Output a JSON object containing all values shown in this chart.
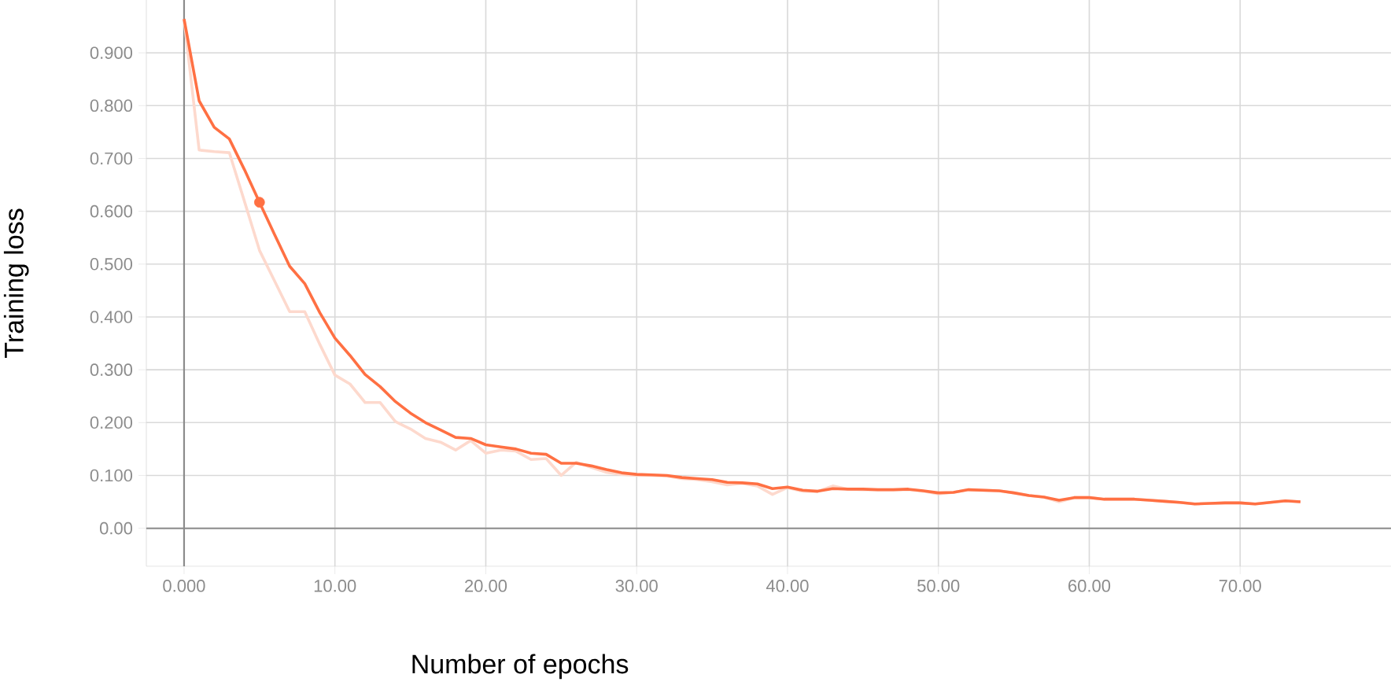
{
  "chart_data": {
    "type": "line",
    "xlabel": "Number of epochs",
    "ylabel": "Training loss",
    "xlim": [
      -2.5,
      80
    ],
    "ylim": [
      -0.072,
      1.0
    ],
    "xticks": [
      {
        "value": 0,
        "label": "0.000"
      },
      {
        "value": 10,
        "label": "10.00"
      },
      {
        "value": 20,
        "label": "20.00"
      },
      {
        "value": 30,
        "label": "30.00"
      },
      {
        "value": 40,
        "label": "40.00"
      },
      {
        "value": 50,
        "label": "50.00"
      },
      {
        "value": 60,
        "label": "60.00"
      },
      {
        "value": 70,
        "label": "70.00"
      }
    ],
    "yticks": [
      {
        "value": 0,
        "label": "0.00"
      },
      {
        "value": 0.1,
        "label": "0.100"
      },
      {
        "value": 0.2,
        "label": "0.200"
      },
      {
        "value": 0.3,
        "label": "0.300"
      },
      {
        "value": 0.4,
        "label": "0.400"
      },
      {
        "value": 0.5,
        "label": "0.500"
      },
      {
        "value": 0.6,
        "label": "0.600"
      },
      {
        "value": 0.7,
        "label": "0.700"
      },
      {
        "value": 0.8,
        "label": "0.800"
      },
      {
        "value": 0.9,
        "label": "0.900"
      }
    ],
    "grid": true,
    "series": [
      {
        "type": "line",
        "color": "#fdd9cd",
        "x": [
          0,
          1,
          2,
          3,
          4,
          5,
          6,
          7,
          8,
          9,
          10,
          11,
          12,
          13,
          14,
          15,
          16,
          17,
          18,
          19,
          20,
          21,
          22,
          23,
          24,
          25,
          26,
          27,
          28,
          29,
          30,
          31,
          32,
          33,
          34,
          35,
          36,
          37,
          38,
          39,
          40,
          41,
          42,
          43,
          44,
          45,
          46,
          47,
          48,
          49,
          50,
          51,
          52,
          53,
          54,
          55,
          56,
          57,
          58,
          59,
          60,
          61,
          62,
          63,
          64,
          65,
          66,
          67,
          68,
          69,
          70,
          71,
          72,
          73,
          74
        ],
        "values": [
          0.964,
          0.716,
          0.713,
          0.711,
          0.619,
          0.526,
          0.468,
          0.41,
          0.41,
          0.348,
          0.29,
          0.273,
          0.238,
          0.238,
          0.202,
          0.188,
          0.17,
          0.163,
          0.148,
          0.166,
          0.142,
          0.148,
          0.146,
          0.13,
          0.132,
          0.1,
          0.125,
          0.115,
          0.106,
          0.102,
          0.1,
          0.1,
          0.099,
          0.094,
          0.092,
          0.088,
          0.082,
          0.085,
          0.08,
          0.064,
          0.077,
          0.07,
          0.07,
          0.08,
          0.074,
          0.073,
          0.073,
          0.073,
          0.073,
          0.07,
          0.065,
          0.068,
          0.073,
          0.072,
          0.071,
          0.067,
          0.062,
          0.059,
          0.05,
          0.058,
          0.058,
          0.055,
          0.055,
          0.055,
          0.053,
          0.051,
          0.049,
          0.046,
          0.047,
          0.048,
          0.048,
          0.046,
          0.049,
          0.052,
          0.05
        ]
      },
      {
        "type": "line",
        "color": "#ff7043",
        "x": [
          0,
          1,
          2,
          3,
          4,
          5,
          6,
          7,
          8,
          9,
          10,
          11,
          12,
          13,
          14,
          15,
          16,
          17,
          18,
          19,
          20,
          21,
          22,
          23,
          24,
          25,
          26,
          27,
          28,
          29,
          30,
          31,
          32,
          33,
          34,
          35,
          36,
          37,
          38,
          39,
          40,
          41,
          42,
          43,
          44,
          45,
          46,
          47,
          48,
          49,
          50,
          51,
          52,
          53,
          54,
          55,
          56,
          57,
          58,
          59,
          60,
          61,
          62,
          63,
          64,
          65,
          66,
          67,
          68,
          69,
          70,
          71,
          72,
          73,
          74
        ],
        "values": [
          0.964,
          0.809,
          0.759,
          0.737,
          0.679,
          0.617,
          0.556,
          0.496,
          0.463,
          0.408,
          0.36,
          0.327,
          0.291,
          0.268,
          0.24,
          0.218,
          0.2,
          0.186,
          0.172,
          0.17,
          0.158,
          0.154,
          0.15,
          0.142,
          0.14,
          0.123,
          0.123,
          0.118,
          0.111,
          0.105,
          0.102,
          0.101,
          0.1,
          0.096,
          0.094,
          0.092,
          0.087,
          0.086,
          0.084,
          0.075,
          0.078,
          0.072,
          0.07,
          0.075,
          0.074,
          0.074,
          0.073,
          0.073,
          0.074,
          0.071,
          0.067,
          0.068,
          0.073,
          0.072,
          0.071,
          0.067,
          0.062,
          0.059,
          0.053,
          0.058,
          0.058,
          0.055,
          0.055,
          0.055,
          0.053,
          0.051,
          0.049,
          0.046,
          0.047,
          0.048,
          0.048,
          0.046,
          0.049,
          0.052,
          0.05
        ]
      },
      {
        "type": "scatter",
        "color": "#ff7043",
        "marker": "circle",
        "x": [
          5
        ],
        "values": [
          0.617
        ]
      }
    ]
  }
}
